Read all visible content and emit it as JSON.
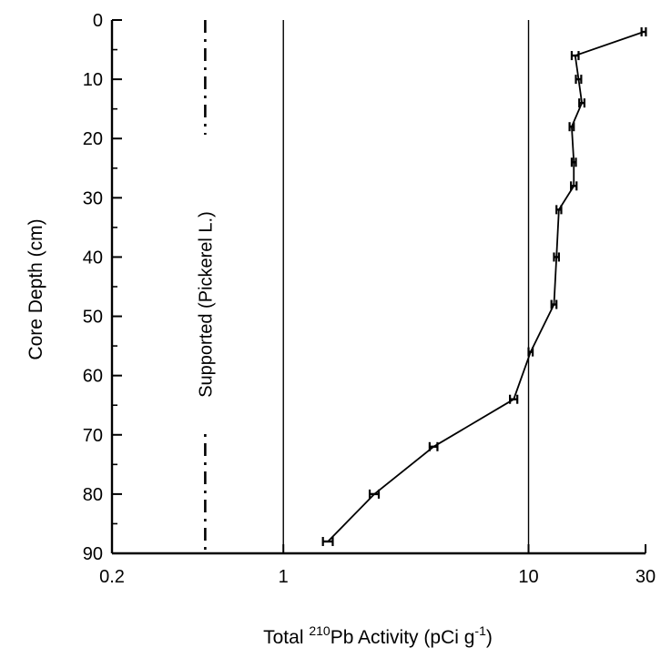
{
  "chart_data": {
    "type": "line",
    "x_scale": "log",
    "y_inverted": true,
    "xlim": [
      0.2,
      30
    ],
    "ylim": [
      0,
      90
    ],
    "x_ticks": [
      {
        "value": 0.2,
        "label": "0.2"
      },
      {
        "value": 1,
        "label": "1"
      },
      {
        "value": 10,
        "label": "10"
      },
      {
        "value": 30,
        "label": "30"
      }
    ],
    "y_ticks": [
      {
        "value": 0,
        "label": "0"
      },
      {
        "value": 10,
        "label": "10"
      },
      {
        "value": 20,
        "label": "20"
      },
      {
        "value": 30,
        "label": "30"
      },
      {
        "value": 40,
        "label": "40"
      },
      {
        "value": 50,
        "label": "50"
      },
      {
        "value": 60,
        "label": "60"
      },
      {
        "value": 70,
        "label": "70"
      },
      {
        "value": 80,
        "label": "80"
      },
      {
        "value": 90,
        "label": "90"
      }
    ],
    "y_minor_step": 5,
    "gridlines_x": [
      1,
      10
    ],
    "xlabel": {
      "prefix": "Total ",
      "sup": "210",
      "mid": "Pb Activity (pCi g",
      "sup2": "-1",
      "suffix": ")"
    },
    "ylabel": "Core Depth (cm)",
    "series": [
      {
        "points": [
          {
            "x": 29.5,
            "y": 2,
            "err": 0.6
          },
          {
            "x": 15.5,
            "y": 6,
            "err": 0.5
          },
          {
            "x": 16.0,
            "y": 10,
            "err": 0.4
          },
          {
            "x": 16.5,
            "y": 14,
            "err": 0.4
          },
          {
            "x": 15.0,
            "y": 18,
            "err": 0.3
          },
          {
            "x": 15.3,
            "y": 24,
            "err": 0.3
          },
          {
            "x": 15.3,
            "y": 28,
            "err": 0.4
          },
          {
            "x": 13.3,
            "y": 32,
            "err": 0.3
          },
          {
            "x": 13.0,
            "y": 40,
            "err": 0.3
          },
          {
            "x": 12.7,
            "y": 48,
            "err": 0.3
          },
          {
            "x": 10.2,
            "y": 56,
            "err": 0.2
          },
          {
            "x": 8.7,
            "y": 64,
            "err": 0.3
          },
          {
            "x": 4.1,
            "y": 72,
            "err": 0.15
          },
          {
            "x": 2.35,
            "y": 80,
            "err": 0.1
          },
          {
            "x": 1.52,
            "y": 88,
            "err": 0.07
          }
        ]
      }
    ],
    "supported_line": {
      "x": 0.48,
      "label": "Supported (Pickerel L.)"
    }
  }
}
